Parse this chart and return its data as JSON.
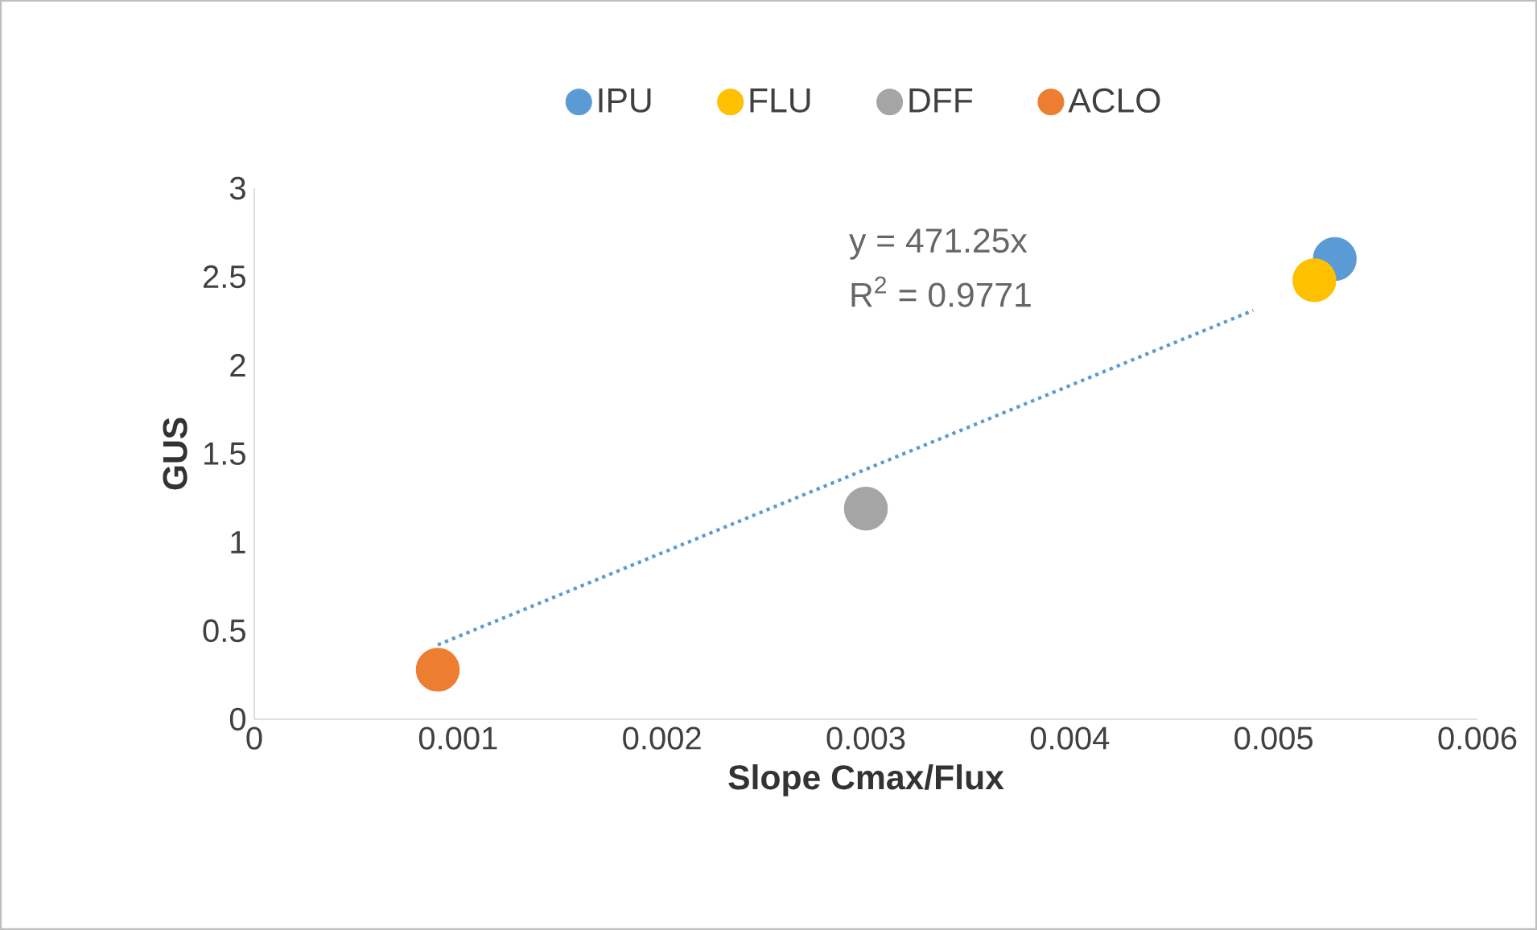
{
  "chart_data": {
    "type": "scatter",
    "xlabel": "Slope Cmax/Flux",
    "ylabel": "GUS",
    "xlim": [
      0,
      0.006
    ],
    "xticks": [
      0,
      0.001,
      0.002,
      0.003,
      0.004,
      0.005,
      0.006
    ],
    "ylim": [
      0,
      3
    ],
    "yticks": [
      0,
      0.5,
      1,
      1.5,
      2,
      2.5,
      3
    ],
    "legend": "top",
    "marker": "circle",
    "grid": false,
    "annotations": [
      "y = 471.25x",
      "R$^{2}$ = 0.9771"
    ],
    "series": [
      {
        "name": "IPU",
        "color": "#5b9bd5",
        "x": [
          0.0053
        ],
        "values": [
          2.6
        ]
      },
      {
        "name": "FLU",
        "color": "#ffc000",
        "x": [
          0.0052
        ],
        "values": [
          2.48
        ]
      },
      {
        "name": "DFF",
        "color": "#a5a5a5",
        "x": [
          0.003
        ],
        "values": [
          1.19
        ]
      },
      {
        "name": "ACLO",
        "color": "#ed7d31",
        "x": [
          0.0009
        ],
        "values": [
          0.28
        ]
      },
      {
        "type": "line",
        "color": "#5b9bd5",
        "line_style": "dotted",
        "marker": "none",
        "x": [
          0.0009,
          0.0049
        ],
        "values": [
          0.42,
          2.31
        ]
      }
    ]
  }
}
